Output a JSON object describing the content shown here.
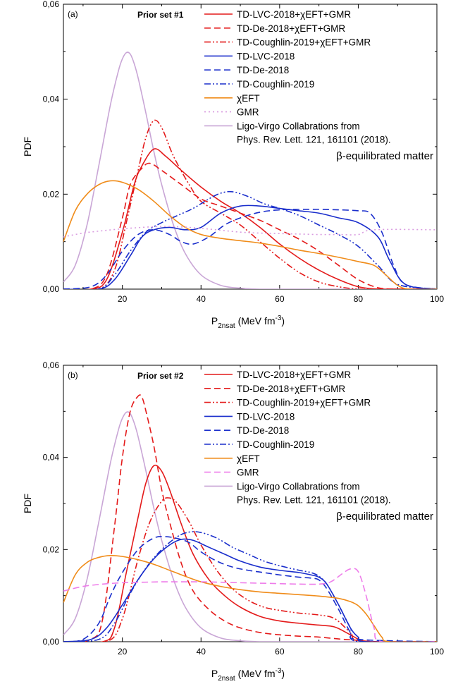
{
  "chart_data": [
    {
      "type": "line",
      "panel_label": "(a)",
      "annotation": "Prior set #1",
      "note": "β-equilibrated matter",
      "xlabel": {
        "main": "P",
        "sub": "2n",
        "subsub": "sat",
        "unit": " (MeV fm",
        "unit_sup": "-3",
        "unit_end": ")"
      },
      "ylabel": "PDF",
      "xlim": [
        5,
        100
      ],
      "ylim": [
        0,
        0.06
      ],
      "xticks": [
        20,
        40,
        60,
        80,
        100
      ],
      "xtick_labels": [
        "20",
        "40",
        "60",
        "80",
        "100"
      ],
      "yticks": [
        0,
        0.02,
        0.04,
        0.06
      ],
      "ytick_labels": [
        "0,00",
        "0,02",
        "0,04",
        "0,06"
      ],
      "legend_position": "top-right",
      "series": [
        {
          "name": "TD-LVC-2018+χEFT+GMR",
          "color": "#e41a1a",
          "dash": "solid",
          "x": [
            5,
            12,
            16,
            20,
            23,
            25,
            28,
            31,
            35,
            40,
            45,
            50,
            55,
            60,
            65,
            70,
            75,
            80,
            85,
            90,
            100
          ],
          "y": [
            0,
            0,
            0.002,
            0.012,
            0.022,
            0.026,
            0.0295,
            0.028,
            0.025,
            0.0215,
            0.0185,
            0.016,
            0.013,
            0.0095,
            0.0065,
            0.004,
            0.002,
            0.0005,
            0,
            0,
            0
          ]
        },
        {
          "name": "TD-De-2018+χEFT+GMR",
          "color": "#e41a1a",
          "dash": "dashed",
          "x": [
            5,
            12,
            16,
            20,
            22,
            25,
            27,
            30,
            35,
            40,
            45,
            50,
            55,
            60,
            65,
            70,
            75,
            80,
            85,
            90,
            100
          ],
          "y": [
            0,
            0,
            0.003,
            0.015,
            0.022,
            0.0255,
            0.0265,
            0.025,
            0.022,
            0.019,
            0.0175,
            0.016,
            0.0145,
            0.0125,
            0.0105,
            0.008,
            0.005,
            0.002,
            0.0003,
            0,
            0
          ]
        },
        {
          "name": "TD-Coughlin-2019+χEFT+GMR",
          "color": "#e41a1a",
          "dash": "dashdotdot",
          "x": [
            5,
            14,
            18,
            21,
            24,
            26,
            28,
            30,
            33,
            37,
            40,
            45,
            50,
            55,
            60,
            65,
            70,
            75,
            80,
            85,
            100
          ],
          "y": [
            0,
            0,
            0.004,
            0.014,
            0.025,
            0.032,
            0.0355,
            0.034,
            0.028,
            0.022,
            0.0185,
            0.016,
            0.0135,
            0.01,
            0.0065,
            0.0035,
            0.0015,
            0.0005,
            0,
            0,
            0
          ]
        },
        {
          "name": "TD-LVC-2018",
          "color": "#1a2ecc",
          "dash": "solid",
          "x": [
            5,
            14,
            18,
            22,
            25,
            28,
            32,
            36,
            40,
            45,
            50,
            55,
            60,
            65,
            70,
            75,
            80,
            85,
            88,
            92,
            100
          ],
          "y": [
            0,
            0,
            0.002,
            0.007,
            0.011,
            0.0125,
            0.013,
            0.0125,
            0.013,
            0.016,
            0.0175,
            0.0175,
            0.017,
            0.0165,
            0.016,
            0.015,
            0.014,
            0.011,
            0.006,
            0.001,
            0
          ]
        },
        {
          "name": "TD-De-2018",
          "color": "#1a2ecc",
          "dash": "dashed",
          "x": [
            5,
            12,
            16,
            20,
            24,
            28,
            32,
            35,
            38,
            42,
            46,
            50,
            55,
            60,
            65,
            70,
            75,
            80,
            83,
            86,
            89,
            92,
            100
          ],
          "y": [
            0,
            0.0005,
            0.003,
            0.008,
            0.0115,
            0.0125,
            0.0115,
            0.01,
            0.0095,
            0.011,
            0.0135,
            0.015,
            0.0162,
            0.0167,
            0.0168,
            0.0168,
            0.0167,
            0.0165,
            0.016,
            0.012,
            0.005,
            0.001,
            0
          ]
        },
        {
          "name": "TD-Coughlin-2019",
          "color": "#1a2ecc",
          "dash": "dashdotdot",
          "x": [
            5,
            14,
            18,
            22,
            26,
            30,
            34,
            38,
            42,
            45,
            48,
            52,
            56,
            60,
            65,
            70,
            75,
            80,
            85,
            90,
            100
          ],
          "y": [
            0,
            0,
            0.003,
            0.008,
            0.012,
            0.014,
            0.0155,
            0.017,
            0.019,
            0.0202,
            0.0205,
            0.0195,
            0.018,
            0.017,
            0.0155,
            0.0135,
            0.0115,
            0.009,
            0.005,
            0.001,
            0
          ]
        },
        {
          "name": "χEFT",
          "color": "#f08c1a",
          "dash": "solid",
          "x": [
            5,
            8,
            11,
            14,
            17,
            20,
            24,
            28,
            32,
            36,
            40,
            45,
            50,
            55,
            60,
            65,
            70,
            75,
            80,
            84,
            87,
            90,
            93,
            100
          ],
          "y": [
            0.01,
            0.0165,
            0.02,
            0.022,
            0.0228,
            0.0225,
            0.021,
            0.0185,
            0.0155,
            0.013,
            0.0115,
            0.0107,
            0.0102,
            0.0097,
            0.009,
            0.0082,
            0.0075,
            0.0067,
            0.0058,
            0.005,
            0.003,
            0.0008,
            0,
            0
          ]
        },
        {
          "name": "GMR",
          "color": "#d99be0",
          "dash": "dotted",
          "x": [
            5,
            10,
            15,
            20,
            25,
            30,
            35,
            40,
            45,
            50,
            55,
            60,
            65,
            70,
            75,
            80,
            84,
            100
          ],
          "y": [
            0.011,
            0.0118,
            0.0123,
            0.0127,
            0.013,
            0.0132,
            0.0131,
            0.0128,
            0.0124,
            0.012,
            0.0118,
            0.0117,
            0.0116,
            0.0115,
            0.0115,
            0.0115,
            0.0125,
            0.0125
          ]
        },
        {
          "name": "Ligo-Virgo Collabrations from Phys. Rev. Lett. 121, 161101 (2018).",
          "color": "#c9a6d6",
          "dash": "solid",
          "x": [
            5,
            8,
            11,
            14,
            17,
            19,
            20,
            21,
            22,
            23,
            24,
            26,
            28,
            30,
            33,
            36,
            40,
            45,
            50,
            55,
            60,
            100
          ],
          "y": [
            0.0015,
            0.005,
            0.0135,
            0.026,
            0.039,
            0.046,
            0.0485,
            0.0498,
            0.0495,
            0.0475,
            0.0445,
            0.037,
            0.029,
            0.022,
            0.0135,
            0.0075,
            0.003,
            0.0008,
            0.0002,
            0,
            0,
            0
          ]
        }
      ]
    },
    {
      "type": "line",
      "panel_label": "(b)",
      "annotation": "Prior set #2",
      "note": "β-equilibrated matter",
      "xlabel": {
        "main": "P",
        "sub": "2n",
        "subsub": "sat",
        "unit": " (MeV fm",
        "unit_sup": "-3",
        "unit_end": ")"
      },
      "ylabel": "PDF",
      "xlim": [
        5,
        100
      ],
      "ylim": [
        0,
        0.06
      ],
      "xticks": [
        20,
        40,
        60,
        80,
        100
      ],
      "xtick_labels": [
        "20",
        "40",
        "60",
        "80",
        "100"
      ],
      "yticks": [
        0,
        0.02,
        0.04,
        0.06
      ],
      "ytick_labels": [
        "0,00",
        "0,02",
        "0,04",
        "0,06"
      ],
      "legend_position": "top-right",
      "series": [
        {
          "name": "TD-LVC-2018+χEFT+GMR",
          "color": "#e41a1a",
          "dash": "solid",
          "x": [
            5,
            15,
            18,
            21,
            24,
            26,
            28,
            30,
            32,
            35,
            38,
            42,
            46,
            50,
            55,
            60,
            65,
            70,
            74,
            78,
            81,
            85,
            100
          ],
          "y": [
            0,
            0,
            0.003,
            0.015,
            0.027,
            0.0345,
            0.0382,
            0.037,
            0.033,
            0.0255,
            0.019,
            0.0135,
            0.01,
            0.0075,
            0.0055,
            0.0045,
            0.004,
            0.0036,
            0.0032,
            0.0015,
            0.0002,
            0,
            0
          ]
        },
        {
          "name": "TD-De-2018+χEFT+GMR",
          "color": "#e41a1a",
          "dash": "dashed",
          "x": [
            5,
            12,
            15,
            18,
            20,
            22,
            24,
            25,
            26,
            28,
            30,
            32,
            35,
            38,
            42,
            46,
            50,
            55,
            60,
            65,
            70,
            75,
            80,
            85,
            100
          ],
          "y": [
            0,
            0.0005,
            0.005,
            0.025,
            0.04,
            0.05,
            0.0533,
            0.053,
            0.05,
            0.0425,
            0.033,
            0.026,
            0.017,
            0.011,
            0.007,
            0.0045,
            0.003,
            0.002,
            0.0015,
            0.0012,
            0.001,
            0.0006,
            0.0003,
            0,
            0
          ]
        },
        {
          "name": "TD-Coughlin-2019+χEFT+GMR",
          "color": "#e41a1a",
          "dash": "dashdotdot",
          "x": [
            5,
            16,
            20,
            24,
            27,
            30,
            32,
            34,
            37,
            40,
            44,
            48,
            52,
            56,
            60,
            65,
            70,
            74,
            78,
            81,
            100
          ],
          "y": [
            0,
            0,
            0.005,
            0.018,
            0.026,
            0.0305,
            0.0312,
            0.03,
            0.026,
            0.021,
            0.0155,
            0.0115,
            0.009,
            0.0075,
            0.0068,
            0.0062,
            0.0058,
            0.005,
            0.002,
            0,
            0
          ]
        },
        {
          "name": "TD-LVC-2018",
          "color": "#1a2ecc",
          "dash": "solid",
          "x": [
            5,
            12,
            16,
            20,
            24,
            28,
            32,
            35,
            38,
            42,
            46,
            50,
            55,
            60,
            65,
            68,
            70,
            72,
            75,
            78,
            80,
            82,
            100
          ],
          "y": [
            0,
            0.0005,
            0.003,
            0.008,
            0.0135,
            0.018,
            0.021,
            0.0222,
            0.022,
            0.0205,
            0.019,
            0.0175,
            0.0162,
            0.0155,
            0.015,
            0.0145,
            0.014,
            0.0125,
            0.008,
            0.003,
            0.001,
            0,
            0
          ]
        },
        {
          "name": "TD-De-2018",
          "color": "#1a2ecc",
          "dash": "dashed",
          "x": [
            5,
            10,
            14,
            17,
            20,
            24,
            28,
            31,
            34,
            37,
            40,
            44,
            48,
            52,
            56,
            60,
            65,
            68,
            70,
            72,
            75,
            78,
            80,
            100
          ],
          "y": [
            0,
            0.0005,
            0.004,
            0.01,
            0.015,
            0.02,
            0.0225,
            0.0228,
            0.0224,
            0.0215,
            0.0195,
            0.0175,
            0.0162,
            0.0155,
            0.015,
            0.0145,
            0.014,
            0.0138,
            0.0134,
            0.0115,
            0.007,
            0.002,
            0.0005,
            0
          ]
        },
        {
          "name": "TD-Coughlin-2019",
          "color": "#1a2ecc",
          "dash": "dashdotdot",
          "x": [
            5,
            14,
            18,
            22,
            26,
            30,
            34,
            37,
            40,
            44,
            48,
            52,
            56,
            60,
            65,
            68,
            70,
            72,
            75,
            78,
            80,
            100
          ],
          "y": [
            0,
            0.0005,
            0.004,
            0.0105,
            0.016,
            0.02,
            0.0228,
            0.0238,
            0.0237,
            0.0225,
            0.0205,
            0.019,
            0.0175,
            0.0165,
            0.0155,
            0.015,
            0.0142,
            0.0125,
            0.008,
            0.003,
            0,
            0
          ]
        },
        {
          "name": "χEFT",
          "color": "#f08c1a",
          "dash": "solid",
          "x": [
            5,
            8,
            11,
            14,
            17,
            20,
            24,
            28,
            32,
            36,
            40,
            45,
            50,
            55,
            60,
            65,
            70,
            75,
            78,
            80,
            82,
            84,
            86,
            88,
            100
          ],
          "y": [
            0.0085,
            0.0145,
            0.0172,
            0.0183,
            0.0187,
            0.0185,
            0.0178,
            0.0168,
            0.0155,
            0.0142,
            0.013,
            0.012,
            0.0113,
            0.0108,
            0.0105,
            0.0102,
            0.0099,
            0.0094,
            0.0087,
            0.0078,
            0.006,
            0.0035,
            0.001,
            0,
            0
          ]
        },
        {
          "name": "GMR",
          "color": "#ee7cea",
          "dash": "dashed",
          "x": [
            5,
            10,
            15,
            20,
            25,
            30,
            35,
            40,
            45,
            50,
            55,
            60,
            65,
            70,
            73,
            76,
            78,
            80,
            82,
            84,
            86,
            100
          ],
          "y": [
            0.011,
            0.012,
            0.0125,
            0.0128,
            0.0129,
            0.013,
            0.013,
            0.013,
            0.0129,
            0.0128,
            0.0127,
            0.0126,
            0.0125,
            0.0125,
            0.013,
            0.0148,
            0.0158,
            0.0152,
            0.01,
            0.003,
            0,
            0
          ]
        },
        {
          "name": "Ligo-Virgo Collabrations from Phys. Rev. Lett. 121, 161101 (2018).",
          "color": "#c9a6d6",
          "dash": "solid",
          "x": [
            5,
            8,
            11,
            14,
            17,
            19,
            20,
            21,
            22,
            23,
            24,
            26,
            28,
            30,
            33,
            36,
            40,
            45,
            50,
            55,
            60,
            100
          ],
          "y": [
            0.0015,
            0.005,
            0.0135,
            0.026,
            0.039,
            0.046,
            0.0485,
            0.0498,
            0.0495,
            0.0475,
            0.0445,
            0.037,
            0.029,
            0.022,
            0.0135,
            0.0075,
            0.003,
            0.0008,
            0.0002,
            0,
            0,
            0
          ]
        }
      ]
    }
  ]
}
